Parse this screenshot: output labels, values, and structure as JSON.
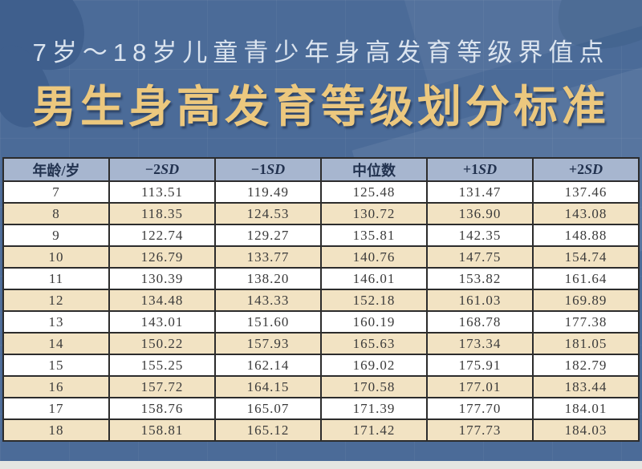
{
  "header": {
    "subtitle": "7岁～18岁儿童青少年身高发育等级界值点",
    "title": "男生身高发育等级划分标准"
  },
  "chart_data": {
    "type": "table",
    "title": "男生身高发育等级划分标准",
    "subtitle": "7岁～18岁儿童青少年身高发育等级界值点",
    "columns": [
      "年龄/岁",
      "−2SD",
      "−1SD",
      "中位数",
      "+1SD",
      "+2SD"
    ],
    "rows": [
      [
        "7",
        "113.51",
        "119.49",
        "125.48",
        "131.47",
        "137.46"
      ],
      [
        "8",
        "118.35",
        "124.53",
        "130.72",
        "136.90",
        "143.08"
      ],
      [
        "9",
        "122.74",
        "129.27",
        "135.81",
        "142.35",
        "148.88"
      ],
      [
        "10",
        "126.79",
        "133.77",
        "140.76",
        "147.75",
        "154.74"
      ],
      [
        "11",
        "130.39",
        "138.20",
        "146.01",
        "153.82",
        "161.64"
      ],
      [
        "12",
        "134.48",
        "143.33",
        "152.18",
        "161.03",
        "169.89"
      ],
      [
        "13",
        "143.01",
        "151.60",
        "160.19",
        "168.78",
        "177.38"
      ],
      [
        "14",
        "150.22",
        "157.93",
        "165.63",
        "173.34",
        "181.05"
      ],
      [
        "15",
        "155.25",
        "162.14",
        "169.02",
        "175.91",
        "182.79"
      ],
      [
        "16",
        "157.72",
        "164.15",
        "170.58",
        "177.01",
        "183.44"
      ],
      [
        "17",
        "158.76",
        "165.07",
        "171.39",
        "177.70",
        "184.01"
      ],
      [
        "18",
        "158.81",
        "165.12",
        "171.42",
        "177.73",
        "184.03"
      ]
    ]
  },
  "colors": {
    "background_blue": "#4b6b98",
    "leaf_blue": "#3f5f8d",
    "title_gold": "#ecc87e",
    "subtitle_text": "#dbe4ef",
    "table_header_bg": "#a7b6cf",
    "table_header_text": "#22324f",
    "row_alt_tan": "#f2e3c3",
    "row_white": "#ffffff",
    "border_dark": "#2c2c2c"
  }
}
